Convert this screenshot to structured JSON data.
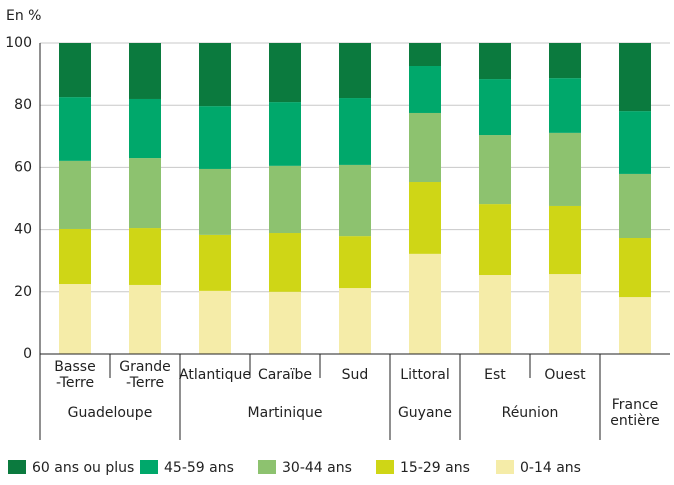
{
  "chart_data": {
    "type": "stacked_bar",
    "ylabel": "En %",
    "ylim": [
      0,
      100
    ],
    "yticks": [
      0,
      20,
      40,
      60,
      80,
      100
    ],
    "grid": true,
    "groups": [
      {
        "name": "Guadeloupe",
        "categories": [
          "Basse\n-Terre",
          "Grande\n-Terre"
        ]
      },
      {
        "name": "Martinique",
        "categories": [
          "Atlantique",
          "Caraïbe",
          "Sud"
        ]
      },
      {
        "name": "Guyane",
        "categories": [
          "Littoral"
        ]
      },
      {
        "name": "Réunion",
        "categories": [
          "Est",
          "Ouest"
        ]
      },
      {
        "name": "France\nentière",
        "categories": [
          null
        ]
      }
    ],
    "series": [
      {
        "name": "60 ans ou plus",
        "color": "#0b7a3e",
        "values": [
          17.4,
          18.0,
          20.3,
          19.0,
          17.7,
          7.4,
          11.6,
          11.3,
          21.9
        ]
      },
      {
        "name": "45-59 ans",
        "color": "#00a86b",
        "values": [
          20.5,
          19.0,
          20.2,
          20.5,
          21.5,
          15.1,
          18.0,
          17.6,
          20.2
        ]
      },
      {
        "name": "30-44 ans",
        "color": "#8dc26f",
        "values": [
          21.9,
          22.5,
          21.2,
          21.6,
          22.9,
          22.2,
          22.2,
          23.5,
          20.6
        ]
      },
      {
        "name": "15-29 ans",
        "color": "#cfd616",
        "values": [
          17.7,
          18.3,
          18.0,
          18.9,
          16.7,
          23.1,
          22.8,
          21.9,
          19.0
        ]
      },
      {
        "name": "0-14 ans",
        "color": "#f5eca8",
        "values": [
          22.5,
          22.2,
          20.3,
          20.0,
          21.2,
          32.2,
          25.4,
          25.7,
          18.3
        ]
      }
    ]
  }
}
